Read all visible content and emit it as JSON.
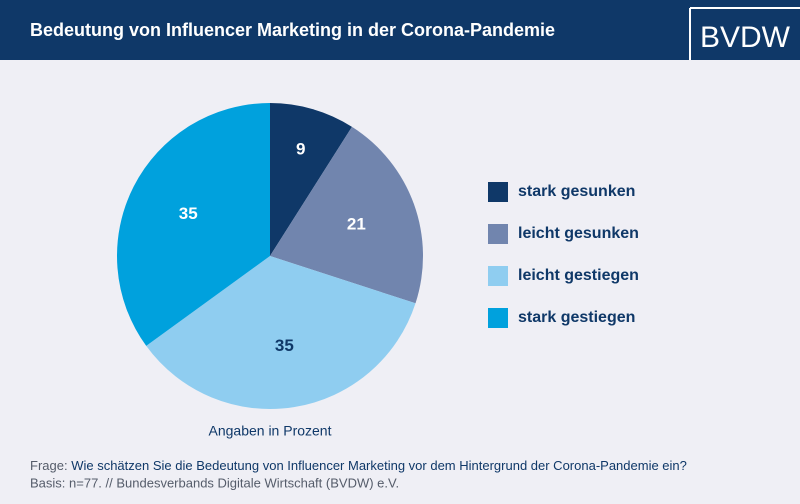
{
  "logo": "BVDW",
  "chart_data": {
    "type": "pie",
    "title": "Bedeutung von Influencer Marketing in der Corona-Pandemie",
    "categories": [
      "stark gesunken",
      "leicht gesunken",
      "leicht gestiegen",
      "stark gestiegen"
    ],
    "values": [
      9,
      21,
      35,
      35
    ],
    "colors": [
      "#0f3868",
      "#7185ae",
      "#8fcdf0",
      "#00a1dd"
    ],
    "note": "Angaben in Prozent",
    "legend": "right"
  },
  "footer": {
    "question_label": "Frage:",
    "question": "Wie schätzen Sie die Bedeutung von Influencer Marketing vor dem Hintergrund der Corona-Pandemie ein?",
    "basis": "Basis: n=77. // Bundesverbands Digitale Wirtschaft (BVDW) e.V."
  }
}
